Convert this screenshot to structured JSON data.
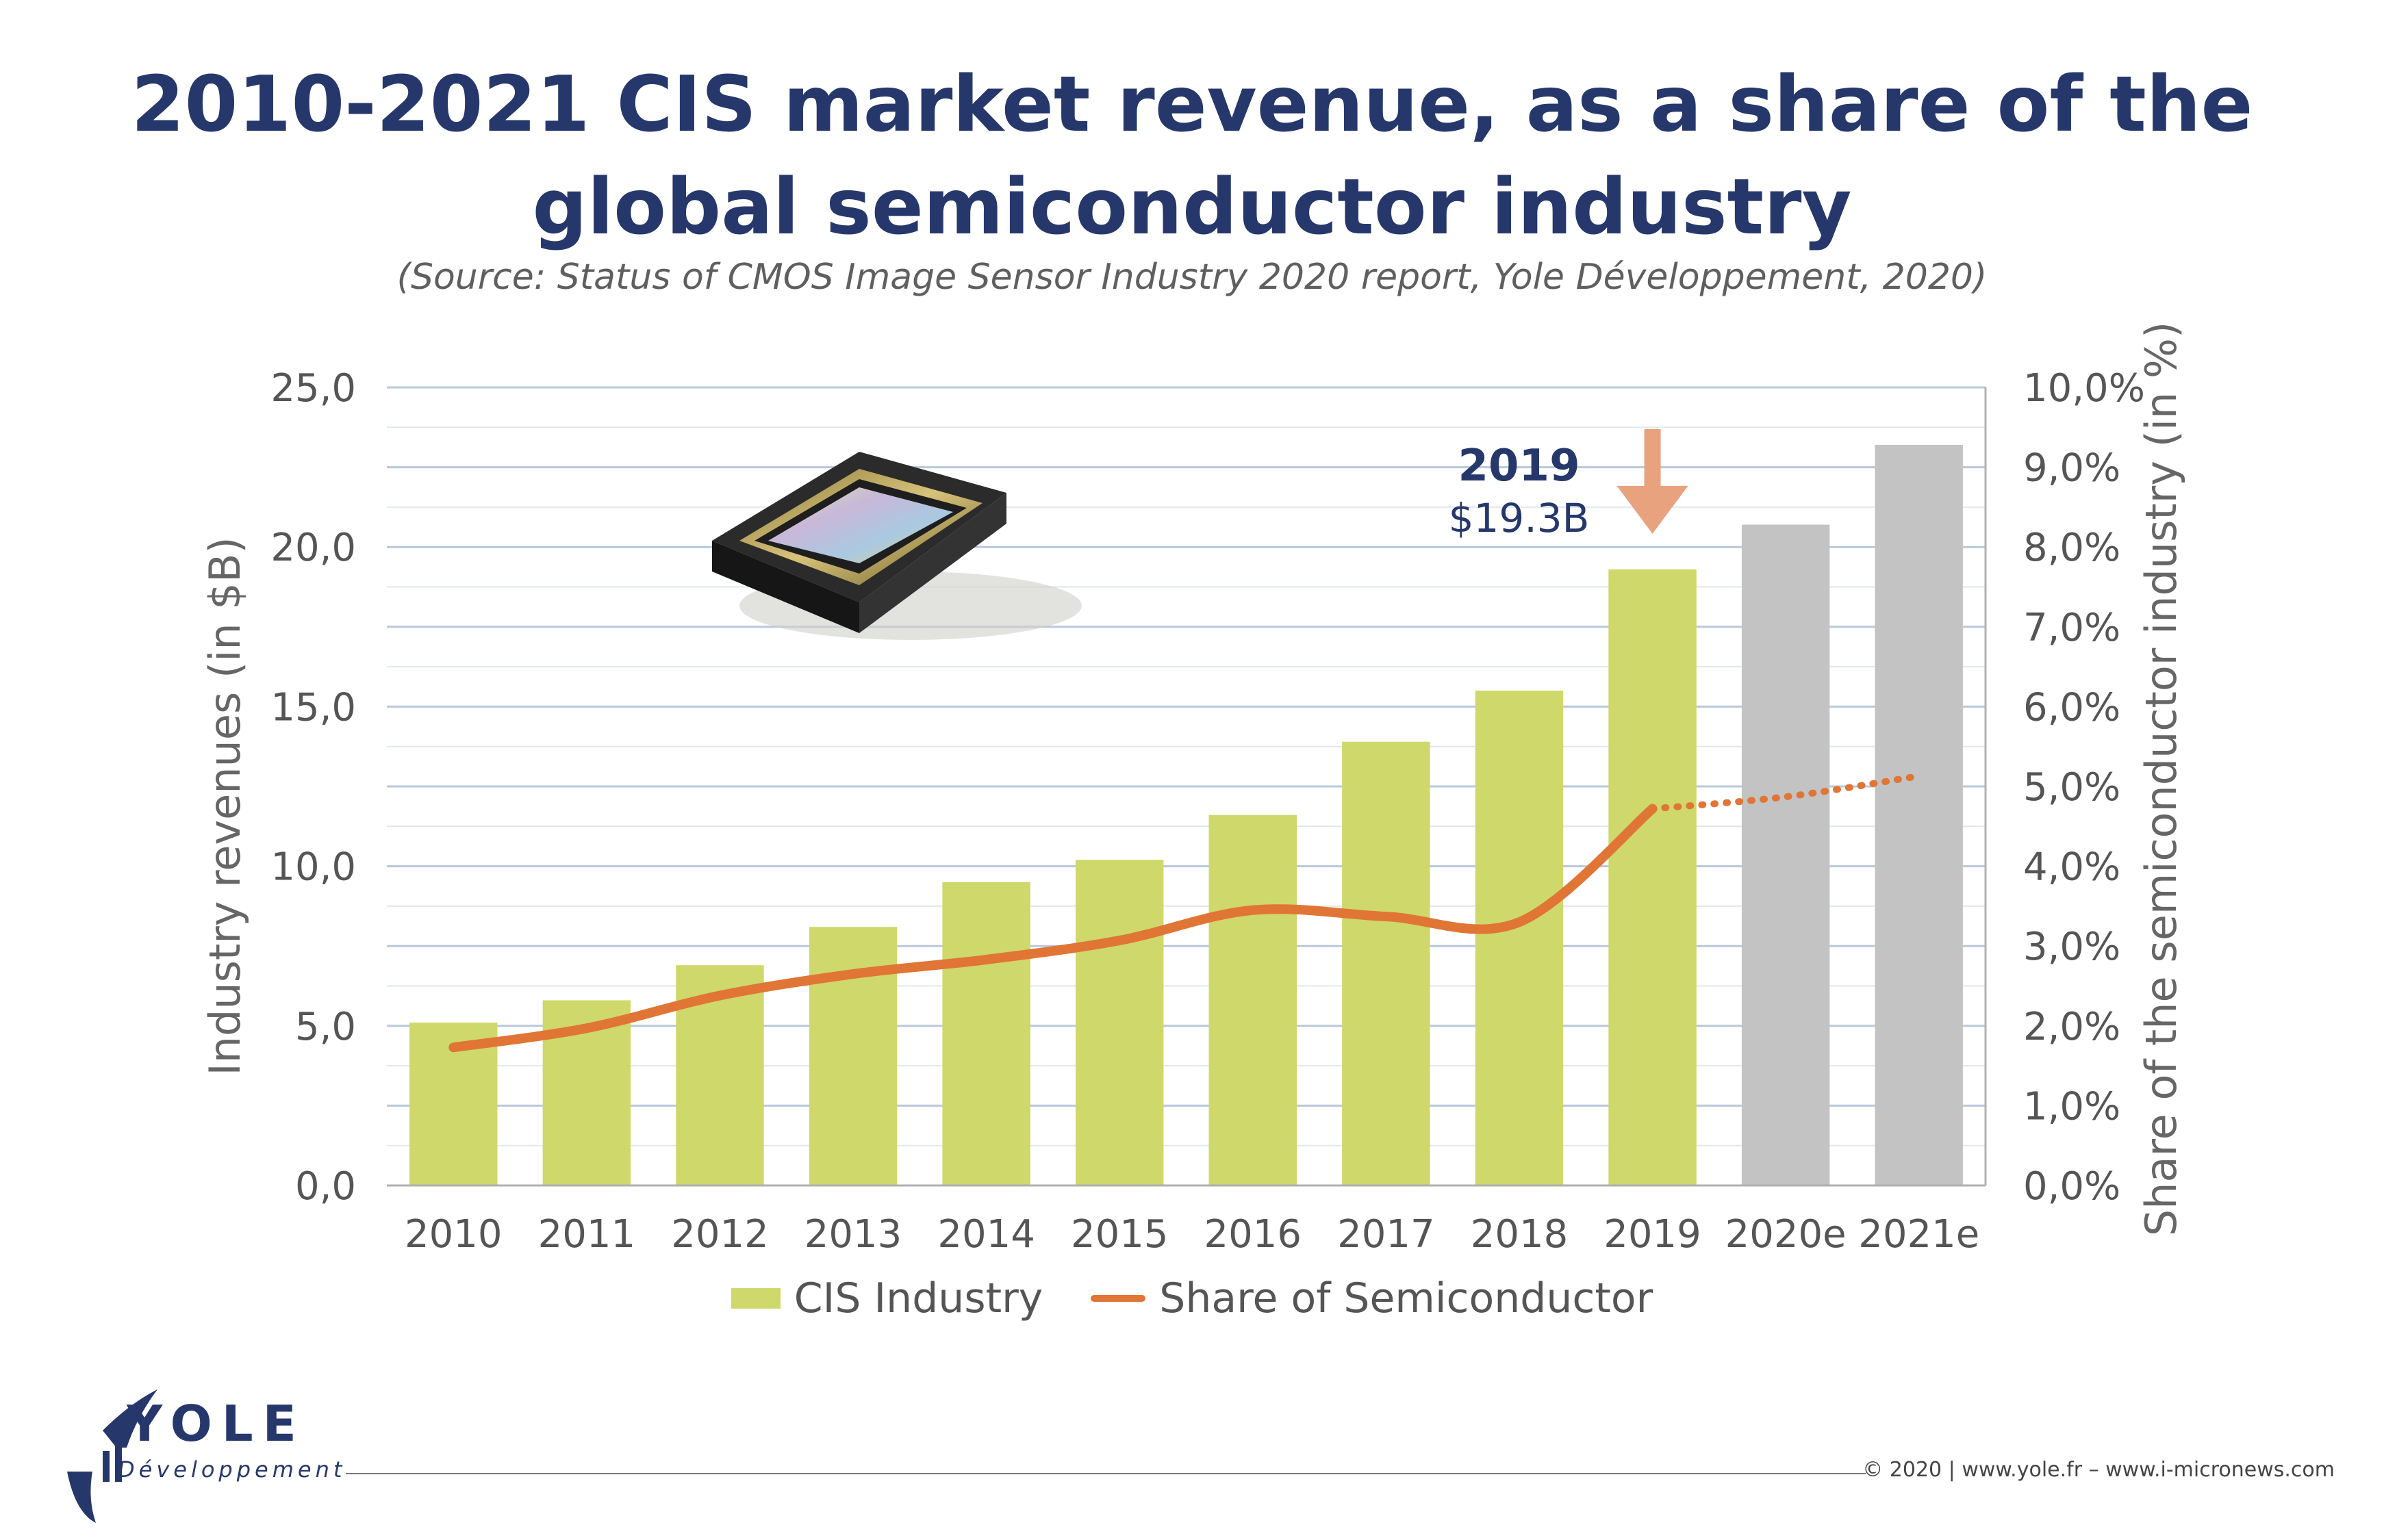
{
  "header": {
    "title_line1": "2010-2021 CIS market revenue, as a share of the",
    "title_line2": "global semiconductor industry",
    "subtitle": "(Source: Status of CMOS Image Sensor Industry 2020 report, Yole Développement, 2020)"
  },
  "chart_data": {
    "type": "bar",
    "categories": [
      "2010",
      "2011",
      "2012",
      "2013",
      "2014",
      "2015",
      "2016",
      "2017",
      "2018",
      "2019",
      "2020e",
      "2021e"
    ],
    "series": [
      {
        "name": "CIS Industry",
        "axis": "left",
        "type": "bar",
        "values": [
          5.1,
          5.8,
          6.9,
          8.1,
          9.5,
          10.2,
          11.6,
          13.9,
          15.5,
          19.3,
          20.7,
          23.2
        ],
        "colors": [
          "#cfd86a",
          "#cfd86a",
          "#cfd86a",
          "#cfd86a",
          "#cfd86a",
          "#cfd86a",
          "#cfd86a",
          "#cfd86a",
          "#cfd86a",
          "#cfd86a",
          "#c3c3c3",
          "#c3c3c3"
        ]
      },
      {
        "name": "Share of Semiconductor",
        "axis": "right",
        "type": "line",
        "values": [
          1.73,
          1.97,
          2.38,
          2.65,
          2.83,
          3.07,
          3.45,
          3.37,
          3.3,
          4.72,
          4.87,
          5.13
        ],
        "projected_from_index": 9,
        "color": "#e07535"
      }
    ],
    "ylabel": "Industry revenues (in $B)",
    "ylim": [
      0,
      25
    ],
    "yticks": [
      "0,0",
      "5,0",
      "10,0",
      "15,0",
      "20,0",
      "25,0"
    ],
    "y2label": "Share of the semiconductor industry (in %)",
    "y2lim": [
      0,
      10
    ],
    "y2ticks": [
      "0,0%",
      "1,0%",
      "2,0%",
      "3,0%",
      "4,0%",
      "5,0%",
      "6,0%",
      "7,0%",
      "8,0%",
      "9,0%",
      "10,0%"
    ],
    "grid": true,
    "legend_position": "bottom",
    "annotation": {
      "year": "2019",
      "value": "$19.3B",
      "category_index": 9,
      "arrow_color": "#e8a27d"
    },
    "annotation_color": "#26386b"
  },
  "legend": {
    "bar_label": "CIS Industry",
    "line_label": "Share of Semiconductor"
  },
  "footer": {
    "logo_name": "YOLE",
    "logo_sub": "Développement",
    "copyright": "© 2020 | www.yole.fr – www.i-micronews.com"
  },
  "icons": {
    "sensor": "cmos-sensor-chip-icon",
    "logo": "yole-logo-icon"
  }
}
